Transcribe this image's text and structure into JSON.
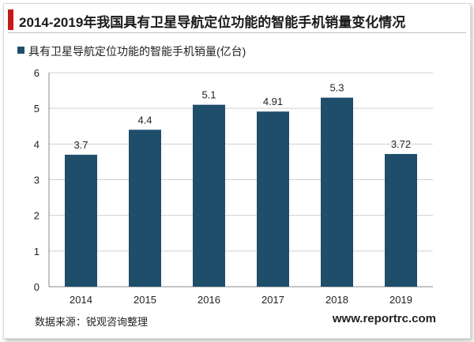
{
  "title": "2014-2019年我国具有卫星导航定位功能的智能手机销量变化情况",
  "footer": {
    "source": "数据来源：锐观咨询整理",
    "website": "www.reportrc.com"
  },
  "colors": {
    "accent": "#c41a1a",
    "bar": "#1f4e6b",
    "grid": "#d0d0d0",
    "axis": "#888888"
  },
  "chart_data": {
    "type": "bar",
    "categories": [
      "2014",
      "2015",
      "2016",
      "2017",
      "2018",
      "2019"
    ],
    "series": [
      {
        "name": "具有卫星导航定位功能的智能手机销量(亿台)",
        "values": [
          3.7,
          4.4,
          5.1,
          4.91,
          5.3,
          3.72
        ],
        "labels": [
          "3.7",
          "4.4",
          "5.1",
          "4.91",
          "5.3",
          "3.72"
        ]
      }
    ],
    "ylim": [
      0,
      6
    ],
    "yticks": [
      0,
      1,
      2,
      3,
      4,
      5,
      6
    ],
    "grid": true,
    "legend_position": "top-left",
    "xlabel": "",
    "ylabel": ""
  }
}
